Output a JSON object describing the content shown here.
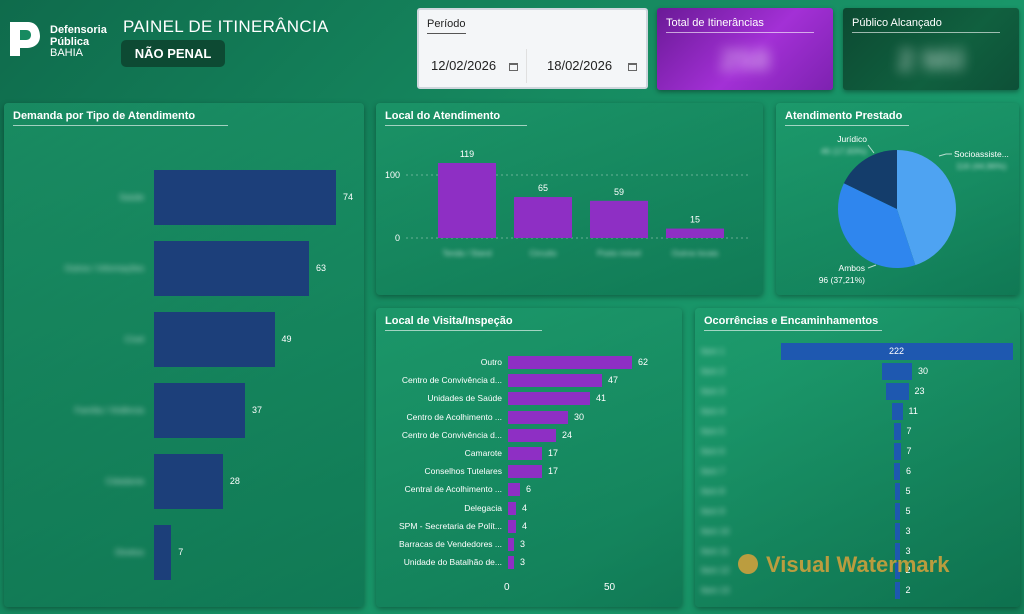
{
  "header": {
    "logo_line1": "Defensoria",
    "logo_line2": "Pública",
    "logo_line3": "BAHIA",
    "title": "PAINEL DE ITINERÂNCIA",
    "mode_badge": "NÃO PENAL"
  },
  "periodo": {
    "label": "Período",
    "start": "12/02/2026",
    "end": "18/02/2026"
  },
  "kpis": {
    "total_label": "Total de Itinerâncias",
    "total_value": "258",
    "publico_label": "Público Alcançado",
    "publico_value": "2 Mil",
    "total_color": "#8a1fb0",
    "publico_color": "#0e4d36"
  },
  "colors": {
    "navy": "#1c3f7a",
    "purple": "#8e2fc4",
    "blue_light": "#4ea3f2",
    "blue_mid": "#2f86ee",
    "blue_dark": "#143d6b",
    "occ_blue": "#1e58b0"
  },
  "chart_data": [
    {
      "type": "bar",
      "orientation": "horizontal",
      "title": "Demanda por Tipo de Atendimento",
      "categories": [
        "Saúde",
        "Outros / Informações",
        "Cível",
        "Família / Violência",
        "Cidadania",
        "Direitos"
      ],
      "values": [
        74,
        63,
        49,
        37,
        28,
        7
      ],
      "labels_blurred": true
    },
    {
      "type": "bar",
      "title": "Local do Atendimento",
      "categories": [
        "Tenda / Stand",
        "Circuito",
        "Posto móvel",
        "Outros locais"
      ],
      "values": [
        119,
        65,
        59,
        15
      ],
      "yticks": [
        0,
        100
      ],
      "labels_blurred": true
    },
    {
      "type": "pie",
      "title": "Atendimento Prestado",
      "slices": [
        {
          "name": "Socioassiste...",
          "value": 116,
          "label": "116 (44,96%)"
        },
        {
          "name": "Ambos",
          "value": 96,
          "label": "96 (37,21%)"
        },
        {
          "name": "Jurídico",
          "value": 46,
          "label": "46 (17,83%)"
        }
      ]
    },
    {
      "type": "bar",
      "orientation": "horizontal",
      "title": "Local de Visita/Inspeção",
      "categories": [
        "Outro",
        "Centro de Convivência d...",
        "Unidades de Saúde",
        "Centro de Acolhimento ...",
        "Centro de Convivência d...",
        "Camarote",
        "Conselhos Tutelares",
        "Central de Acolhimento ...",
        "Delegacia",
        "SPM - Secretaria de Polít...",
        "Barracas de Vendedores ...",
        "Unidade do Batalhão de..."
      ],
      "values": [
        62,
        47,
        41,
        30,
        24,
        17,
        17,
        6,
        4,
        4,
        3,
        3
      ],
      "xticks": [
        0,
        50
      ]
    },
    {
      "type": "bar",
      "orientation": "horizontal",
      "title": "Ocorrências e Encaminhamentos",
      "categories": [
        "Item 1",
        "Item 2",
        "Item 3",
        "Item 4",
        "Item 5",
        "Item 6",
        "Item 7",
        "Item 8",
        "Item 9",
        "Item 10",
        "Item 11",
        "Item 12",
        "Item 13"
      ],
      "values": [
        222,
        30,
        23,
        11,
        7,
        7,
        6,
        5,
        5,
        3,
        3,
        2,
        2
      ],
      "labels_blurred": true
    }
  ],
  "watermark": "Visual Watermark"
}
